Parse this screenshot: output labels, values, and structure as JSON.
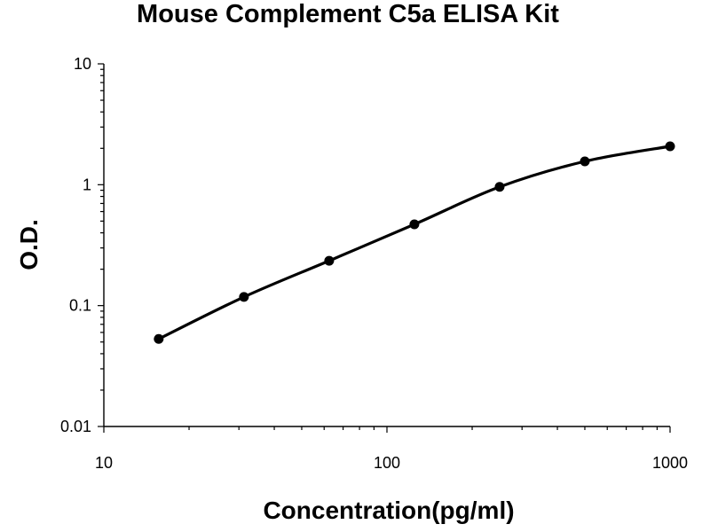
{
  "chart_data": {
    "type": "line",
    "title": "Mouse Complement C5a ELISA Kit",
    "xlabel": "Concentration(pg/ml)",
    "ylabel": "O.D.",
    "xscale": "log",
    "yscale": "log",
    "xlim": [
      10,
      1000
    ],
    "ylim": [
      0.01,
      10
    ],
    "x_ticks": [
      10,
      100,
      1000
    ],
    "x_tick_labels": [
      "10",
      "100",
      "1000"
    ],
    "y_ticks": [
      0.01,
      0.1,
      1,
      10
    ],
    "y_tick_labels": [
      "0.01",
      "0.1",
      "1",
      "10"
    ],
    "grid": false,
    "legend": "none",
    "series": [
      {
        "x": [
          15.625,
          31.25,
          62.5,
          125,
          250,
          500,
          1000
        ],
        "y": [
          0.053,
          0.118,
          0.235,
          0.47,
          0.96,
          1.56,
          2.08
        ],
        "style": "points with smooth fitted curve",
        "color": "#000000"
      }
    ]
  }
}
